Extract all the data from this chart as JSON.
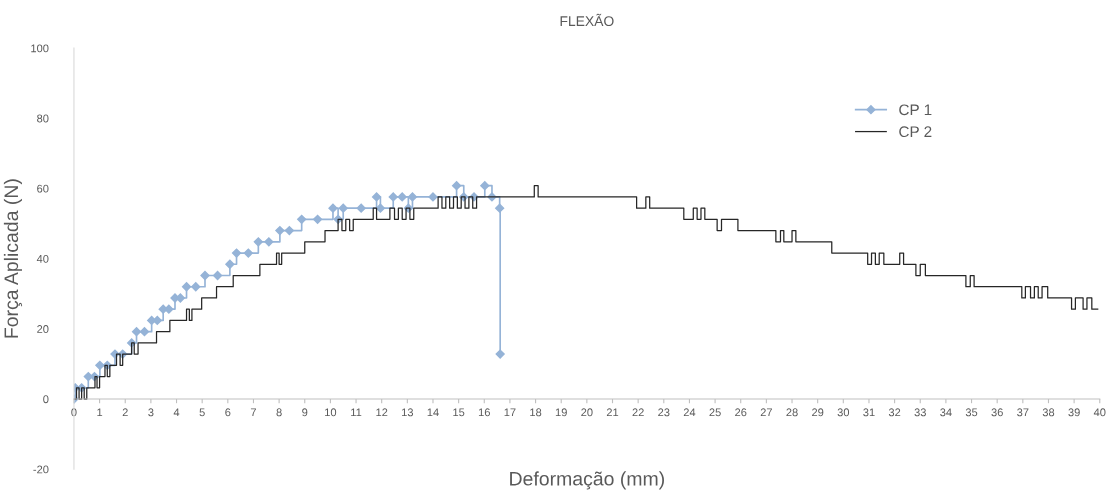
{
  "chart_data": {
    "type": "step",
    "title": "FLEXÃO",
    "xlabel": "Deformação (mm)",
    "ylabel": "Força Aplicada (N)",
    "xlim": [
      0,
      40
    ],
    "xticks": [
      0,
      1,
      2,
      3,
      4,
      5,
      6,
      7,
      8,
      9,
      10,
      11,
      12,
      13,
      14,
      15,
      16,
      17,
      18,
      19,
      20,
      21,
      22,
      23,
      24,
      25,
      26,
      27,
      28,
      29,
      30,
      31,
      32,
      33,
      34,
      35,
      36,
      37,
      38,
      39,
      40
    ],
    "ylim": [
      -20,
      100
    ],
    "yticks": [
      -20,
      0,
      20,
      40,
      60,
      80,
      100
    ],
    "grid": false,
    "legend": "top right",
    "series": [
      {
        "name": "CP 1",
        "color": "#95b3d7",
        "marker": "diamond",
        "x": [
          0,
          0.05,
          0.3,
          0.56,
          0.8,
          1.01,
          1.3,
          1.6,
          1.9,
          2.25,
          2.44,
          2.75,
          3.03,
          3.25,
          3.48,
          3.7,
          3.94,
          4.15,
          4.39,
          4.75,
          5.11,
          5.6,
          6.08,
          6.34,
          6.8,
          7.19,
          7.6,
          8.03,
          8.4,
          8.88,
          9.5,
          10.1,
          10.3,
          10.5,
          11.2,
          11.8,
          11.95,
          12.45,
          12.8,
          13.04,
          13.2,
          14.0,
          14.92,
          15.2,
          15.6,
          16.02,
          16.3,
          16.6,
          16.62
        ],
        "values": [
          0,
          3.2,
          3.2,
          6.4,
          6.4,
          9.6,
          9.6,
          12.8,
          12.8,
          16,
          19.2,
          19.2,
          22.4,
          22.4,
          25.6,
          25.6,
          28.8,
          28.8,
          32,
          32,
          35.2,
          35.2,
          38.4,
          41.6,
          41.6,
          44.8,
          44.8,
          48,
          48,
          51.2,
          51.2,
          54.4,
          51.2,
          54.4,
          54.4,
          57.6,
          54.4,
          57.6,
          57.6,
          54.4,
          57.6,
          57.6,
          60.8,
          57.6,
          57.6,
          60.8,
          57.6,
          54.4,
          12.8
        ]
      },
      {
        "name": "CP 2",
        "color": "#262626",
        "marker": "none",
        "x": [
          0,
          0.1,
          0.2,
          0.3,
          0.4,
          0.5,
          0.82,
          0.9,
          1.0,
          1.21,
          1.3,
          1.4,
          1.66,
          1.8,
          1.9,
          2.25,
          2.35,
          2.5,
          3.22,
          3.74,
          4.39,
          4.5,
          4.6,
          4.98,
          5.56,
          6.21,
          7.25,
          7.9,
          8.0,
          8.1,
          9.0,
          9.79,
          10.3,
          10.45,
          10.6,
          10.75,
          10.89,
          11.67,
          11.8,
          12.32,
          12.5,
          12.65,
          12.8,
          12.95,
          13.1,
          13.25,
          14.2,
          14.35,
          14.5,
          14.65,
          14.8,
          14.95,
          15.1,
          15.25,
          15.4,
          15.55,
          15.7,
          17.95,
          18.1,
          21.94,
          22.3,
          22.45,
          23.78,
          24.15,
          24.3,
          24.45,
          24.6,
          25.08,
          25.25,
          25.89,
          27.37,
          27.55,
          27.68,
          28.0,
          28.15,
          29.55,
          30.95,
          31.1,
          31.25,
          31.4,
          31.58,
          32.2,
          32.35,
          32.83,
          33.0,
          33.2,
          33.61,
          34.78,
          34.95,
          35.1,
          35.4,
          36.96,
          37.1,
          37.3,
          37.45,
          37.6,
          37.75,
          37.97,
          38.9,
          39.05,
          39.35,
          39.5,
          39.69,
          39.92
        ],
        "values": [
          0,
          3.2,
          0,
          3.2,
          0,
          3.2,
          6.4,
          3.2,
          6.4,
          9.6,
          6.4,
          9.6,
          12.8,
          9.6,
          12.8,
          16,
          12.8,
          16,
          19.2,
          22.4,
          25.6,
          22.4,
          25.6,
          28.8,
          32,
          35.2,
          38.4,
          41.6,
          38.4,
          41.6,
          44.8,
          48,
          51.2,
          48,
          51.2,
          48,
          51.2,
          54.4,
          51.2,
          54.4,
          51.2,
          54.4,
          51.2,
          54.4,
          51.2,
          54.4,
          57.6,
          54.4,
          57.6,
          54.4,
          57.6,
          54.4,
          57.6,
          54.4,
          57.6,
          54.4,
          57.6,
          60.8,
          57.6,
          54.4,
          57.6,
          54.4,
          51.2,
          54.4,
          51.2,
          54.4,
          51.2,
          48,
          51.2,
          48,
          44.8,
          48,
          44.8,
          48,
          44.8,
          41.6,
          38.4,
          41.6,
          38.4,
          41.6,
          38.4,
          41.6,
          38.4,
          35.2,
          38.4,
          35.2,
          35.2,
          32,
          35.2,
          32,
          32,
          28.8,
          32,
          28.8,
          32,
          28.8,
          32,
          28.8,
          25.6,
          28.8,
          25.6,
          28.8,
          25.6,
          25.6
        ]
      }
    ]
  }
}
